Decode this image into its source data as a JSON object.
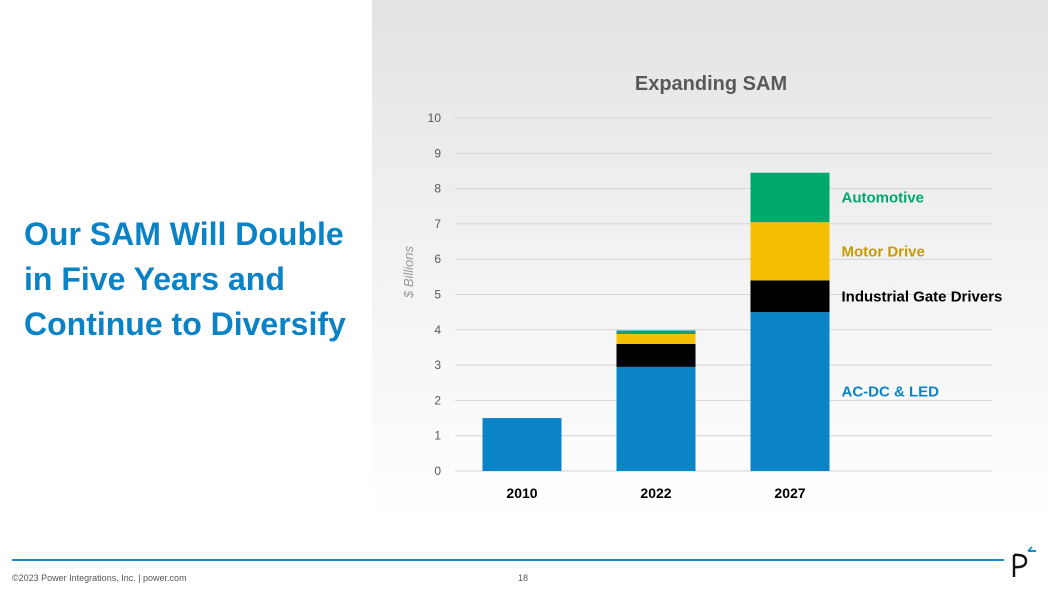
{
  "slide": {
    "headline_lines": [
      "Our SAM Will Double",
      "in Five Years and",
      "Continue to Diversify"
    ],
    "footer_copyright": "©2023 Power Integrations, Inc.  |  power.com",
    "page_number": "18",
    "accent_color": "#0a82c6"
  },
  "chart_data": {
    "type": "bar",
    "stacked": true,
    "title": "Expanding SAM",
    "ylabel": "$ Billions",
    "xlabel": "",
    "ylim": [
      0,
      10
    ],
    "yticks": [
      0,
      1,
      2,
      3,
      4,
      5,
      6,
      7,
      8,
      9,
      10
    ],
    "grid": true,
    "categories": [
      "2010",
      "2022",
      "2027"
    ],
    "series": [
      {
        "name": "AC-DC & LED",
        "color": "#0a84c6",
        "label_color": "#0a84c6",
        "values": [
          1.5,
          2.95,
          4.5
        ]
      },
      {
        "name": "Industrial Gate Drivers",
        "color": "#000000",
        "label_color": "#000000",
        "values": [
          0,
          0.65,
          0.9
        ]
      },
      {
        "name": "Motor Drive",
        "color": "#f5be00",
        "label_color": "#c79a00",
        "values": [
          0,
          0.28,
          1.65
        ]
      },
      {
        "name": "Automotive",
        "color": "#00a86b",
        "label_color": "#00a86b",
        "values": [
          0,
          0.1,
          1.4
        ]
      }
    ],
    "legend_placement": "right-of-last-bar"
  }
}
